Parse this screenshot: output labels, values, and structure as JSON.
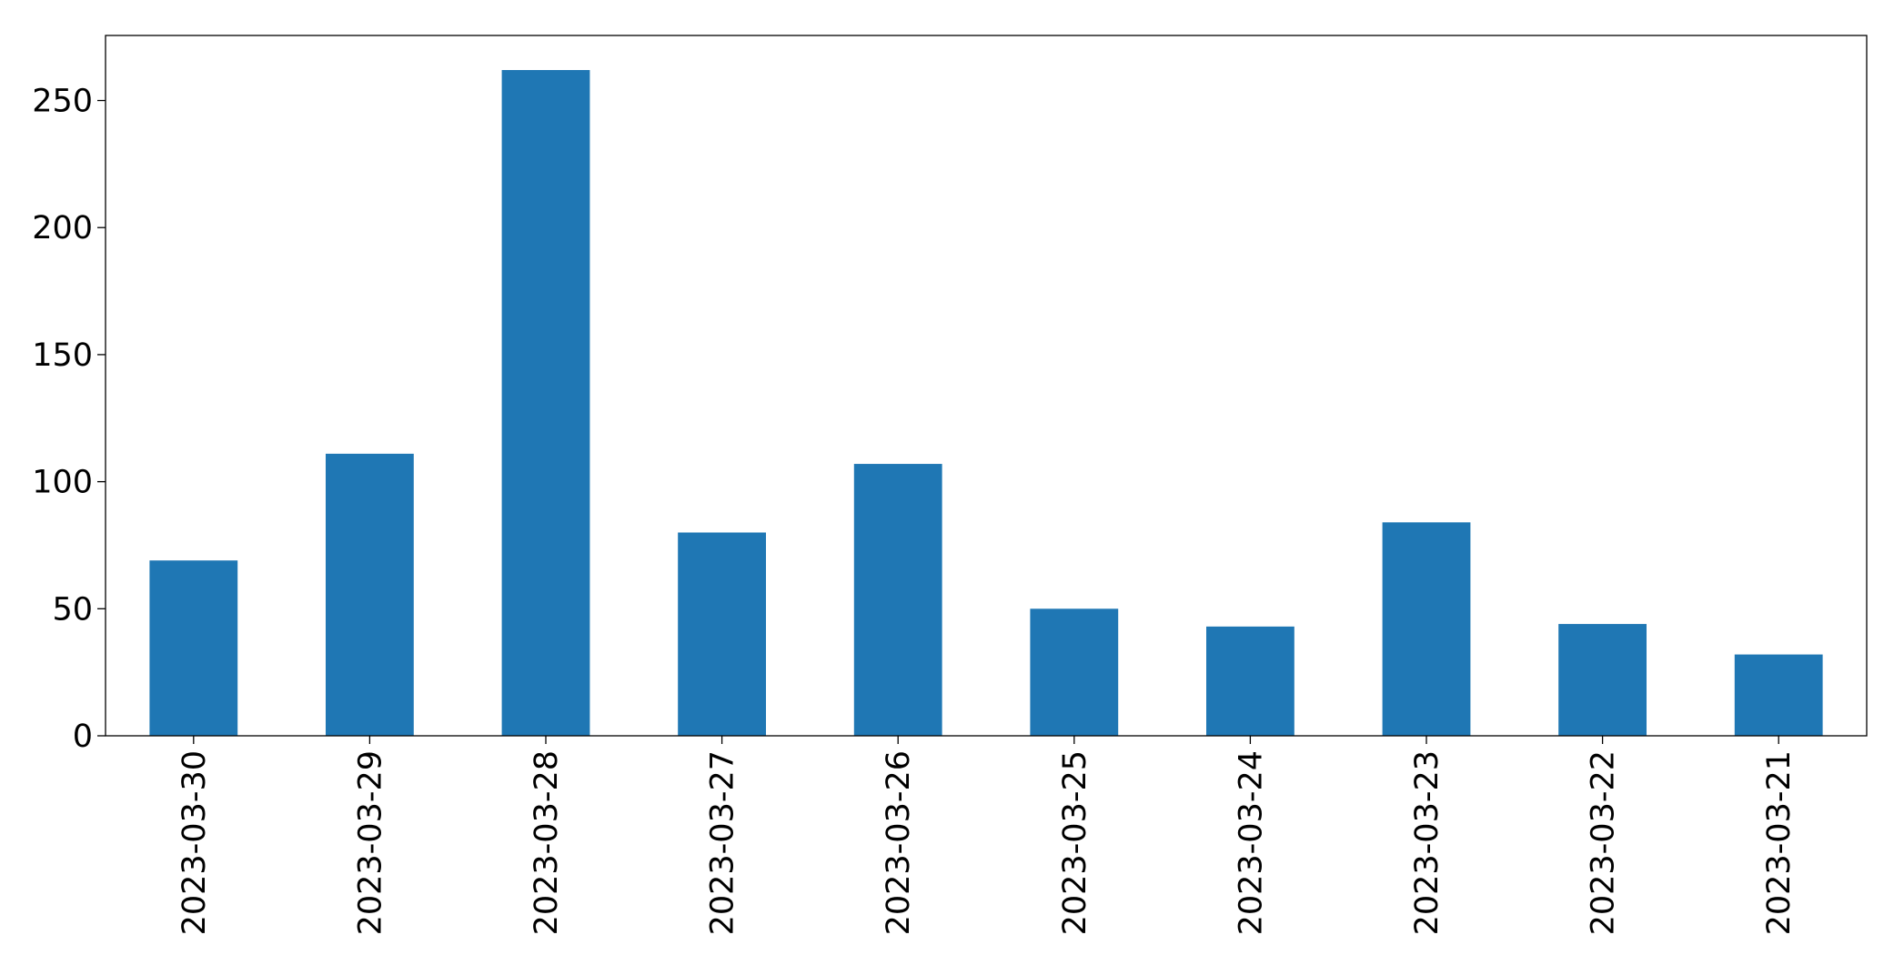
{
  "chart_data": {
    "type": "bar",
    "categories": [
      "2023-03-30",
      "2023-03-29",
      "2023-03-28",
      "2023-03-27",
      "2023-03-26",
      "2023-03-25",
      "2023-03-24",
      "2023-03-23",
      "2023-03-22",
      "2023-03-21"
    ],
    "values": [
      69,
      111,
      262,
      80,
      107,
      50,
      43,
      84,
      44,
      32
    ],
    "color": "#1f77b4",
    "ylim": [
      0,
      275.6
    ],
    "yticks": [
      0,
      50,
      100,
      150,
      200,
      250
    ],
    "grid": false
  }
}
